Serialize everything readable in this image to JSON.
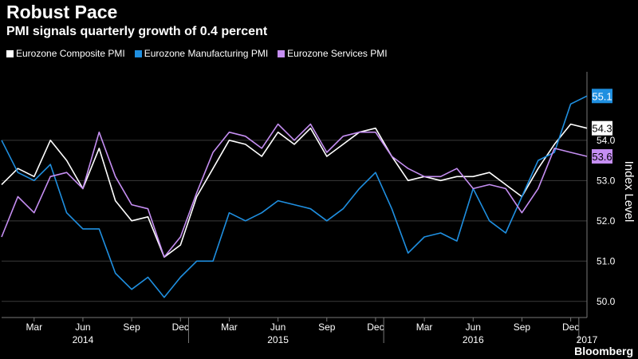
{
  "title": "Robust Pace",
  "subtitle": "PMI signals quarterly growth of 0.4 percent",
  "brand": "Bloomberg",
  "chart_data": {
    "type": "line",
    "ylabel": "Index Level",
    "ylim": [
      49.6,
      55.7
    ],
    "yticks": [
      "50.0",
      "51.0",
      "52.0",
      "53.0",
      "54.0"
    ],
    "x": [
      "2014-01",
      "2014-02",
      "2014-03",
      "2014-04",
      "2014-05",
      "2014-06",
      "2014-07",
      "2014-08",
      "2014-09",
      "2014-10",
      "2014-11",
      "2014-12",
      "2015-01",
      "2015-02",
      "2015-03",
      "2015-04",
      "2015-05",
      "2015-06",
      "2015-07",
      "2015-08",
      "2015-09",
      "2015-10",
      "2015-11",
      "2015-12",
      "2016-01",
      "2016-02",
      "2016-03",
      "2016-04",
      "2016-05",
      "2016-06",
      "2016-07",
      "2016-08",
      "2016-09",
      "2016-10",
      "2016-11",
      "2016-12",
      "2017-01"
    ],
    "month_ticks": [
      {
        "index": 2,
        "label": "Mar"
      },
      {
        "index": 5,
        "label": "Jun"
      },
      {
        "index": 8,
        "label": "Sep"
      },
      {
        "index": 11,
        "label": "Dec"
      },
      {
        "index": 14,
        "label": "Mar"
      },
      {
        "index": 17,
        "label": "Jun"
      },
      {
        "index": 20,
        "label": "Sep"
      },
      {
        "index": 23,
        "label": "Dec"
      },
      {
        "index": 26,
        "label": "Mar"
      },
      {
        "index": 29,
        "label": "Jun"
      },
      {
        "index": 32,
        "label": "Sep"
      },
      {
        "index": 35,
        "label": "Dec"
      }
    ],
    "year_ticks": [
      {
        "index": 5,
        "label": "2014"
      },
      {
        "index": 17,
        "label": "2015"
      },
      {
        "index": 29,
        "label": "2016"
      },
      {
        "index": 36,
        "label": "2017"
      }
    ],
    "series": [
      {
        "name": "Eurozone Composite PMI",
        "color": "#ffffff",
        "end_label": "54.3",
        "values": [
          52.9,
          53.3,
          53.1,
          54.0,
          53.5,
          52.8,
          53.8,
          52.5,
          52.0,
          52.1,
          51.1,
          51.4,
          52.6,
          53.3,
          54.0,
          53.9,
          53.6,
          54.2,
          53.9,
          54.3,
          53.6,
          53.9,
          54.2,
          54.3,
          53.6,
          53.0,
          53.1,
          53.0,
          53.1,
          53.1,
          53.2,
          52.9,
          52.6,
          53.3,
          53.9,
          54.4,
          54.3
        ]
      },
      {
        "name": "Eurozone Manufacturing PMI",
        "color": "#1f8fe0",
        "end_label": "55.1",
        "values": [
          54.0,
          53.2,
          53.0,
          53.4,
          52.2,
          51.8,
          51.8,
          50.7,
          50.3,
          50.6,
          50.1,
          50.6,
          51.0,
          51.0,
          52.2,
          52.0,
          52.2,
          52.5,
          52.4,
          52.3,
          52.0,
          52.3,
          52.8,
          53.2,
          52.3,
          51.2,
          51.6,
          51.7,
          51.5,
          52.8,
          52.0,
          51.7,
          52.6,
          53.5,
          53.7,
          54.9,
          55.1
        ]
      },
      {
        "name": "Eurozone Services PMI",
        "color": "#c58ef2",
        "end_label": "53.6",
        "values": [
          51.6,
          52.6,
          52.2,
          53.1,
          53.2,
          52.8,
          54.2,
          53.1,
          52.4,
          52.3,
          51.1,
          51.6,
          52.7,
          53.7,
          54.2,
          54.1,
          53.8,
          54.4,
          54.0,
          54.4,
          53.7,
          54.1,
          54.2,
          54.2,
          53.6,
          53.3,
          53.1,
          53.1,
          53.3,
          52.8,
          52.9,
          52.8,
          52.2,
          52.8,
          53.8,
          53.7,
          53.6
        ]
      }
    ]
  }
}
